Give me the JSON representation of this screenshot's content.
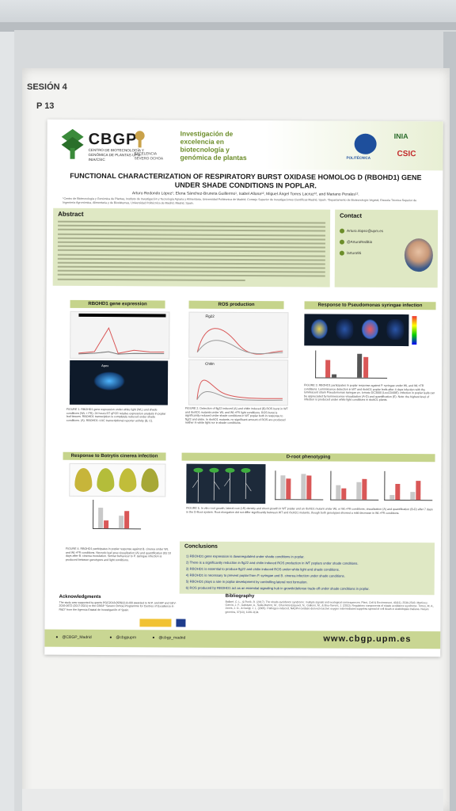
{
  "board": {
    "session": "SESIÓN 4",
    "poster_number": "P 13"
  },
  "header": {
    "cbgp": "CBGP",
    "cbgp_sub": "CENTRO DE BIOTECNOLOGÍA Y GENÓMICA DE PLANTAS UPM-INIA/CSIC",
    "excelencia": "EXCELENCIA SEVERO OCHOA",
    "research": "Investigación de excelencia en biotecnología y genómica de plantas",
    "upm": "POLITÉCNICA",
    "inia": "INIA",
    "csic": "CSIC"
  },
  "title_line1": "FUNCTIONAL CHARACTERIZATION OF RESPIRATORY BURST OXIDASE HOMOLOG D (RBOHD1) GENE",
  "title_line2": "UNDER SHADE CONDITIONS IN POPLAR.",
  "authors": "Arturo Redondo López¹, Elena Sánchez-Bruneta Guillermo¹, Isabel Allona¹², Miguel Ángel Torres Lacruz¹², and Mariano Perales¹².",
  "affiliation": "¹Centro de Biotecnología y Genómica de Plantas, Instituto de Investigación y Tecnología Agraria y Alimentaria, Universidad Politécnica de Madrid; Consejo Superior de Investigaciones Científicas Madrid, Spain. ²Departamento de Biotecnología Vegetal, Escuela Técnica Superior de Ingeniería Agronómica, Alimentaria y de Biosistemas, Universidad Politécnica de Madrid, Madrid, Spain.",
  "abstract": {
    "heading": "Abstract"
  },
  "contact": {
    "heading": "Contact",
    "email": "Arturo.rlopez@upm.es",
    "twitter": "@ArturoRedBio",
    "linkedin": "/arturo95"
  },
  "sections": {
    "rbohd1": "RBOHD1 gene expression",
    "ros": "ROS production",
    "pseudomonas": "Response to Pseudomonas syringae infection",
    "botrytis": "Response to Botrytis cinerea infection",
    "droot": "D-root phenotyping"
  },
  "panel_labels": {
    "flg22": "Flg22",
    "chitin": "Chitin",
    "apex": "Apex"
  },
  "captions": {
    "fig1": "FIGURE 1. RBOHD1 gene expression under white light (WL) and shade conditions (WL + FR). 24 hours RT qPCR relative expression analysis in poplar leaf tissues. RBOHD1 transcription is completely reduced under shade conditions. (A). RBOHD1::LUC transcriptional reporter activity (B, C).",
    "fig2": "FIGURE 2. Detection of flg22 induced (A) and chitin induced (B) ROS burst in WT and rbohD1 mutants under WL and WL+FR light conditions. ROS burst is significantly reduced under shade conditions in WT poplar both in response to flg22 and chitin. In rbohD1 mutants, no significant amount of ROS are produced neither in white light nor in shade conditions.",
    "fig3": "FIGURE 3. RBOHD1 participates in poplar response against P. syringae under WL and WL+FR conditions. Luminiscence detection in WT and rbohD1 poplar leafs after 4 days infection with the luminiscent strain Pseudomonas syringae pv. tomato DC3000 (LuxCDABE). Infection in poplar leafs can be appreciated by luminescence visualization (A-D) and quantification (E). Note: the highest level of infection is produced under white light conditions in rbohD1 plants.",
    "fig4": "FIGURE 4. RBOHD1 participates in poplar response against B. cinerea under WL and WL+FR conditions. Necrotic leaf area visualization (A) and quantification (B) 10 days after B. cinerea inoculation. Similar behaviour to P. syringae infection is produced between genotypes and light conditions.",
    "fig5": "FIGURE 5. In vitro root growth, lateral root (LR) density and shoot growth in WT poplar and an rbohD1 mutant under WL or WL+FR conditions, visualization (A) and quantification (B-D) after 7 days in the D-Root system. Root elongation did not differ significantly between WT and rbohD1 mutants, though both genotypes showed a mild decrease in WL+FR conditions."
  },
  "conclusions": {
    "heading": "Conclusions",
    "items": [
      "1) RBOHD1 gene expression is downregulated under shade conditions in poplar.",
      "2) There is a significantly reduction in flg22 and chitin induced ROS production in WT poplars under shade conditions.",
      "3) RBOHD1 is essential to produce flg22 and chitin induced ROS under white light and shade conditions.",
      "4) RBOHD1 is necessary to prevent poplar from P. syringae and B. cinerea infection under shade conditions.",
      "5) RBOHD1 plays a role in poplar development by controlling lateral root formation.",
      "6) ROS produced by RBOHD1 act as an essential signaling hub in growth/defense trade-off under shade conditions in poplar."
    ]
  },
  "acknowledgments": {
    "heading": "Acknowledgments",
    "text": "The study was supported by grants PGC2018-093922-B-I00 awarded to M.P. and MP and SEV-2016-0672 (2017-2021) to the CBGP \"Severo Ochoa Programme for Centres of Excellence in R&D\" from the Agencia Estatal de Investigación of Spain."
  },
  "bibliography": {
    "heading": "Bibliography",
    "text": "Ballaré, C. L., & Pierik, R. (2017). The shade-avoidance syndrome: multiple signals and ecological consequences. Plant, Cell & Environment, 40(11), 2530-2543. Martínez-García, J. F., Galstyan, A., Salla-Martret, M., Cifuentes-Esquivel, N., Gallemí, M., & Bou-Torrent, J. (2010). Regulatory components of shade avoidance syndrome. Torres, M. A., Jones, J. D., & Dangl, J. L. (2005). Pathogen-induced, NADPH oxidase-derived reactive oxygen intermediates suppress spread of cell death in Arabidopsis thaliana. Nature genetics, 37(10), 1130-1134."
  },
  "footer": {
    "twitter": "@CBGP_Madrid",
    "facebook": "@cbgpupm",
    "instagram": "@cbgp_madrid",
    "web": "www.cbgp.upm.es"
  },
  "colors": {
    "accent_green": "#6c8d2a",
    "section_green": "#c6d48c",
    "panel_green": "#dfe8c4",
    "wt_bar": "#d95757",
    "mut_bar": "#c9c9c9"
  }
}
